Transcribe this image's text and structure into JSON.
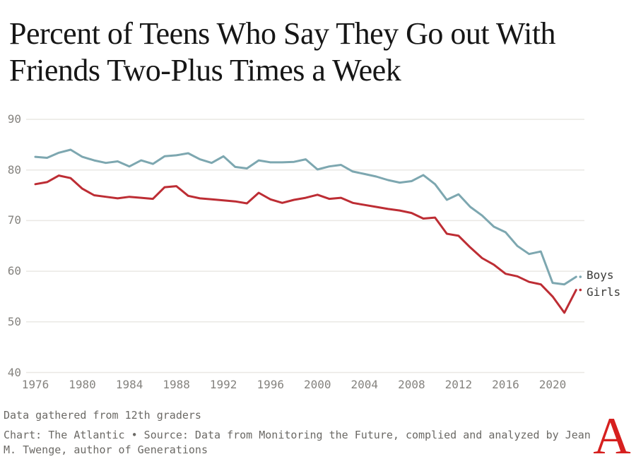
{
  "title": {
    "line1": "Percent of Teens Who Say They Go out With",
    "line2": "Friends Two-Plus Times a Week"
  },
  "chart_data": {
    "type": "line",
    "x": [
      1976,
      1977,
      1978,
      1979,
      1980,
      1981,
      1982,
      1983,
      1984,
      1985,
      1986,
      1987,
      1988,
      1989,
      1990,
      1991,
      1992,
      1993,
      1994,
      1995,
      1996,
      1997,
      1998,
      1999,
      2000,
      2001,
      2002,
      2003,
      2004,
      2005,
      2006,
      2007,
      2008,
      2009,
      2010,
      2011,
      2012,
      2013,
      2014,
      2015,
      2016,
      2017,
      2018,
      2019,
      2020,
      2021,
      2022
    ],
    "series": [
      {
        "name": "Boys",
        "color": "#7da7b0",
        "values": [
          82.6,
          82.4,
          83.4,
          84.0,
          82.6,
          81.9,
          81.4,
          81.7,
          80.7,
          81.9,
          81.2,
          82.7,
          82.9,
          83.3,
          82.1,
          81.4,
          82.7,
          80.6,
          80.3,
          81.9,
          81.5,
          81.5,
          81.6,
          82.1,
          80.1,
          80.7,
          81.0,
          79.7,
          79.2,
          78.7,
          78.0,
          77.5,
          77.8,
          79.0,
          77.2,
          74.1,
          75.2,
          72.7,
          71.0,
          68.8,
          67.7,
          65.0,
          63.4,
          63.9,
          57.7,
          57.4,
          58.9
        ]
      },
      {
        "name": "Girls",
        "color": "#bd2d34",
        "values": [
          77.2,
          77.6,
          78.9,
          78.4,
          76.3,
          75.0,
          74.7,
          74.4,
          74.7,
          74.5,
          74.3,
          76.6,
          76.8,
          74.9,
          74.4,
          74.2,
          74.0,
          73.8,
          73.4,
          75.5,
          74.2,
          73.5,
          74.1,
          74.5,
          75.1,
          74.3,
          74.5,
          73.5,
          73.1,
          72.7,
          72.3,
          72.0,
          71.5,
          70.4,
          70.6,
          67.4,
          67.0,
          64.7,
          62.6,
          61.3,
          59.5,
          59.0,
          57.9,
          57.4,
          55.0,
          51.8,
          56.3
        ]
      }
    ],
    "xticks": [
      1976,
      1980,
      1984,
      1988,
      1992,
      1996,
      2000,
      2004,
      2008,
      2012,
      2016,
      2020
    ],
    "yticks": [
      90,
      80,
      70,
      60,
      50,
      40
    ],
    "ylim": [
      40,
      92
    ],
    "xlim": [
      1976,
      2022
    ],
    "grid": "horizontal",
    "legend_position": "right-of-line-ends",
    "title": "Percent of Teens Who Say They Go out With Friends Two-Plus Times a Week",
    "xlabel": "",
    "ylabel": ""
  },
  "legend": {
    "boys_label": "Boys",
    "girls_label": "Girls"
  },
  "footnote": "Data gathered from 12th graders",
  "source_line": "Chart: The Atlantic • Source: Data from Monitoring the Future, complied and analyzed by Jean M. Twenge, author of Generations",
  "logo": {
    "letter": "A",
    "color": "#d6201f"
  },
  "colors": {
    "grid": "#eae8e4",
    "axis_text": "#85837f",
    "legend_text": "#3b3b39",
    "footer_text": "#6b6965",
    "title_text": "#161616",
    "background": "#ffffff"
  }
}
